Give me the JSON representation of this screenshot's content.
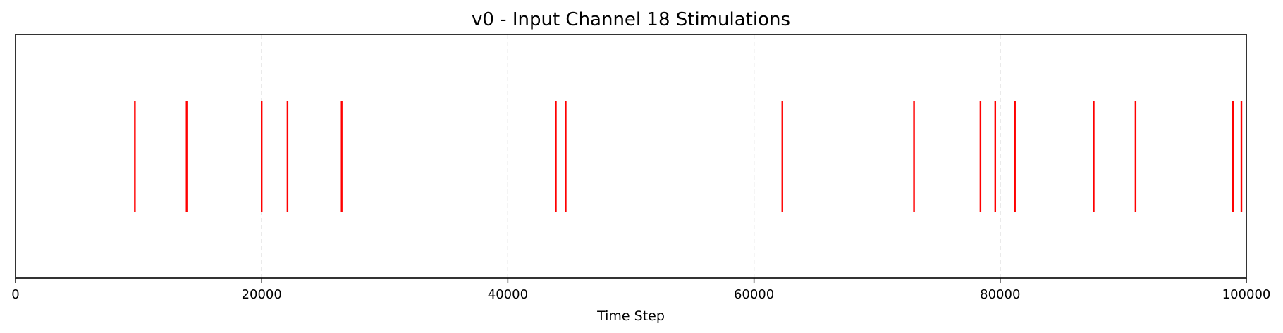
{
  "chart_data": {
    "type": "event-raster",
    "title": "v0 - Input Channel 18 Stimulations",
    "xlabel": "Time Step",
    "ylabel": "",
    "xlim": [
      0,
      100000
    ],
    "xticks": [
      0,
      20000,
      40000,
      60000,
      80000,
      100000
    ],
    "xtick_labels": [
      "0",
      "20000",
      "40000",
      "60000",
      "80000",
      "100000"
    ],
    "grid": "x-dashed",
    "legend": "none",
    "events": [
      9700,
      13900,
      20000,
      22100,
      26500,
      43900,
      44700,
      62300,
      73000,
      78400,
      79600,
      81200,
      87600,
      91000,
      98900,
      99600
    ],
    "colors": {
      "event": "#ff0000",
      "grid": "#cccccc",
      "axes": "#000000"
    }
  }
}
